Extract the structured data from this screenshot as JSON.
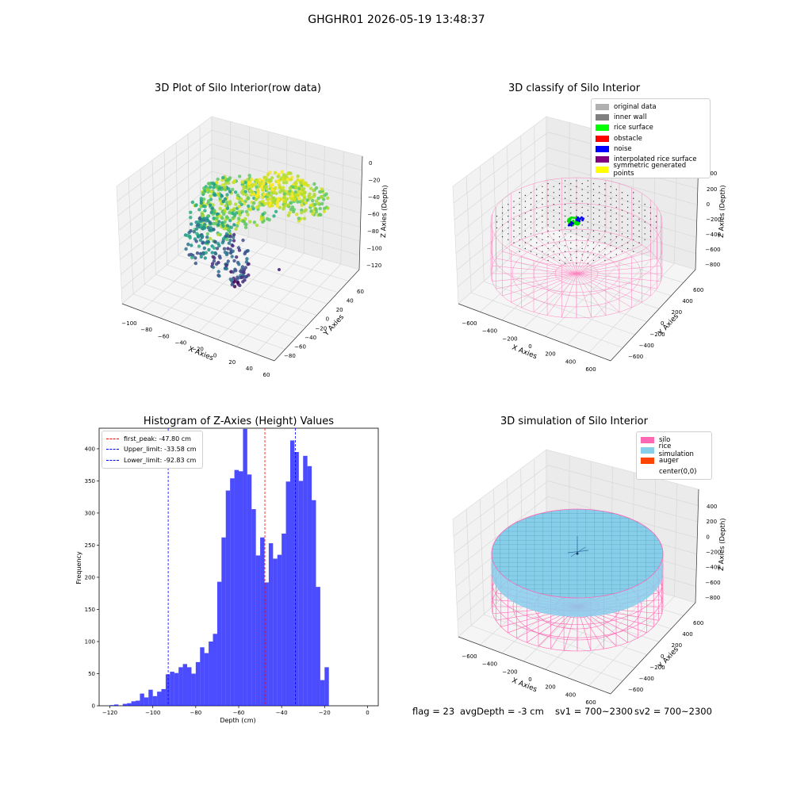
{
  "suptitle": "GHGHR01 2026-05-19 13:48:37",
  "panels": {
    "raw": {
      "title": "3D Plot of Silo Interior(row data)",
      "xlabel": "X Axies",
      "ylabel": "Y Axies",
      "zlabel": "Z Axies (Depth)",
      "xticks": [
        "−100",
        "−80",
        "−60",
        "−40",
        "−20",
        "0",
        "20",
        "40",
        "60"
      ],
      "yticks": [
        "60",
        "40",
        "20",
        "0",
        "−20",
        "−40",
        "−60",
        "−80"
      ],
      "zticks": [
        "0",
        "−20",
        "−40",
        "−60",
        "−80",
        "−100",
        "−120"
      ]
    },
    "classify": {
      "title": "3D classify of Silo Interior",
      "xlabel": "X Axies",
      "ylabel": "Y Axies",
      "zlabel": "Z Axies (Depth)",
      "xticks": [
        "−600",
        "−400",
        "−200",
        "0",
        "200",
        "400",
        "600"
      ],
      "yticks": [
        "600",
        "400",
        "200",
        "0",
        "−200",
        "−400",
        "−600"
      ],
      "zticks": [
        "200",
        "0",
        "−200",
        "−400",
        "−600",
        "−800"
      ],
      "zticks_partial": [
        "300"
      ],
      "legend": [
        {
          "label": "original data",
          "color": "#b0b0b0"
        },
        {
          "label": "inner wall",
          "color": "#808080"
        },
        {
          "label": "rice surface",
          "color": "#00ff00"
        },
        {
          "label": "obstacle",
          "color": "#ff0000"
        },
        {
          "label": "noise",
          "color": "#0000ff"
        },
        {
          "label": "interpolated rice surface",
          "color": "#800080"
        },
        {
          "label": "symmetric generated points",
          "color": "#ffff00"
        }
      ]
    },
    "histogram": {
      "title": "Histogram of Z-Axies (Height) Values",
      "xlabel": "Depth (cm)",
      "ylabel": "Frequency",
      "bar_color": "#0000ff",
      "legend": [
        {
          "label": "first_peak: -47.80 cm",
          "color": "#ff0000"
        },
        {
          "label": "Upper_limit: -33.58 cm",
          "color": "#0000ff"
        },
        {
          "label": "Lower_limit: -92.83 cm",
          "color": "#0000ff"
        }
      ]
    },
    "simulation": {
      "title": "3D simulation of Silo Interior",
      "xlabel": "X Axies",
      "ylabel": "Y Axies",
      "zlabel": "Z Axies (Depth)",
      "xticks": [
        "−600",
        "−400",
        "−200",
        "0",
        "200",
        "400",
        "600"
      ],
      "yticks": [
        "600",
        "400",
        "200",
        "0",
        "−200",
        "−400",
        "−600"
      ],
      "zticks": [
        "400",
        "200",
        "0",
        "−200",
        "−400",
        "−600",
        "−800"
      ],
      "legend": [
        {
          "label": "silo",
          "color": "#ff69b4"
        },
        {
          "label": "rice simulation",
          "color": "#87ceeb"
        },
        {
          "label": "auger",
          "color": "#ff4500"
        },
        {
          "label": "center(0,0)",
          "color": ""
        }
      ]
    }
  },
  "footer": {
    "flag": "flag = 23",
    "avg": "avgDepth = -3 cm",
    "sv1": "sv1 = 700~2300",
    "sv2": "sv2 = 700~2300"
  },
  "chart_data": [
    {
      "type": "scatter",
      "title": "3D Plot of Silo Interior(row data)",
      "note_axes": "3D scatter of silo interior points, colored by depth",
      "xlabel": "X Axies",
      "ylabel": "Y Axies",
      "zlabel": "Z Axies (Depth)",
      "xlim": [
        -110,
        60
      ],
      "ylim": [
        -90,
        70
      ],
      "zlim": [
        -130,
        5
      ]
    },
    {
      "type": "scatter",
      "title": "3D classify of Silo Interior",
      "xlabel": "X Axies",
      "ylabel": "Y Axies",
      "zlabel": "Z Axies (Depth)",
      "xlim": [
        -700,
        700
      ],
      "ylim": [
        -700,
        700
      ],
      "zlim": [
        -900,
        300
      ]
    },
    {
      "type": "bar",
      "title": "Histogram of Z-Axies (Height) Values",
      "xlabel": "Depth (cm)",
      "ylabel": "Frequency",
      "xlim": [
        -125,
        5
      ],
      "ylim": [
        0,
        432
      ],
      "xticks": [
        -120,
        -100,
        -80,
        -60,
        -40,
        -20,
        0
      ],
      "yticks": [
        0,
        50,
        100,
        150,
        200,
        250,
        300,
        350,
        400
      ],
      "bin_width": 2,
      "bin_left_edges": [
        -120,
        -118,
        -116,
        -114,
        -112,
        -110,
        -108,
        -106,
        -104,
        -102,
        -100,
        -98,
        -96,
        -94,
        -92,
        -90,
        -88,
        -86,
        -84,
        -82,
        -80,
        -78,
        -76,
        -74,
        -72,
        -70,
        -68,
        -66,
        -64,
        -62,
        -60,
        -58,
        -56,
        -54,
        -52,
        -50,
        -48,
        -46,
        -44,
        -42,
        -40,
        -38,
        -36,
        -34,
        -32,
        -30,
        -28,
        -26,
        -24,
        -22,
        -20,
        -18,
        -16,
        -14,
        -12,
        -10,
        -8,
        -6,
        -4,
        -2
      ],
      "values": [
        1,
        2,
        0,
        3,
        4,
        7,
        8,
        19,
        13,
        25,
        15,
        22,
        26,
        49,
        53,
        51,
        60,
        65,
        60,
        50,
        68,
        91,
        82,
        100,
        112,
        193,
        262,
        335,
        354,
        367,
        365,
        431,
        360,
        306,
        234,
        262,
        192,
        253,
        229,
        235,
        268,
        349,
        413,
        395,
        350,
        389,
        373,
        320,
        185,
        40,
        60,
        0,
        0,
        0,
        0,
        0,
        0,
        0,
        0,
        0
      ],
      "vlines": [
        {
          "x": -47.8,
          "label": "first_peak: -47.80 cm",
          "color": "#ff0000"
        },
        {
          "x": -33.58,
          "label": "Upper_limit: -33.58 cm",
          "color": "#0000ff"
        },
        {
          "x": -92.83,
          "label": "Lower_limit: -92.83 cm",
          "color": "#0000ff"
        }
      ],
      "legend_placement": "top-left"
    },
    {
      "type": "scatter",
      "title": "3D simulation of Silo Interior",
      "xlabel": "X Axies",
      "ylabel": "Y Axies",
      "zlabel": "Z Axies (Depth)",
      "xlim": [
        -700,
        700
      ],
      "ylim": [
        -700,
        700
      ],
      "zlim": [
        -900,
        500
      ]
    }
  ]
}
